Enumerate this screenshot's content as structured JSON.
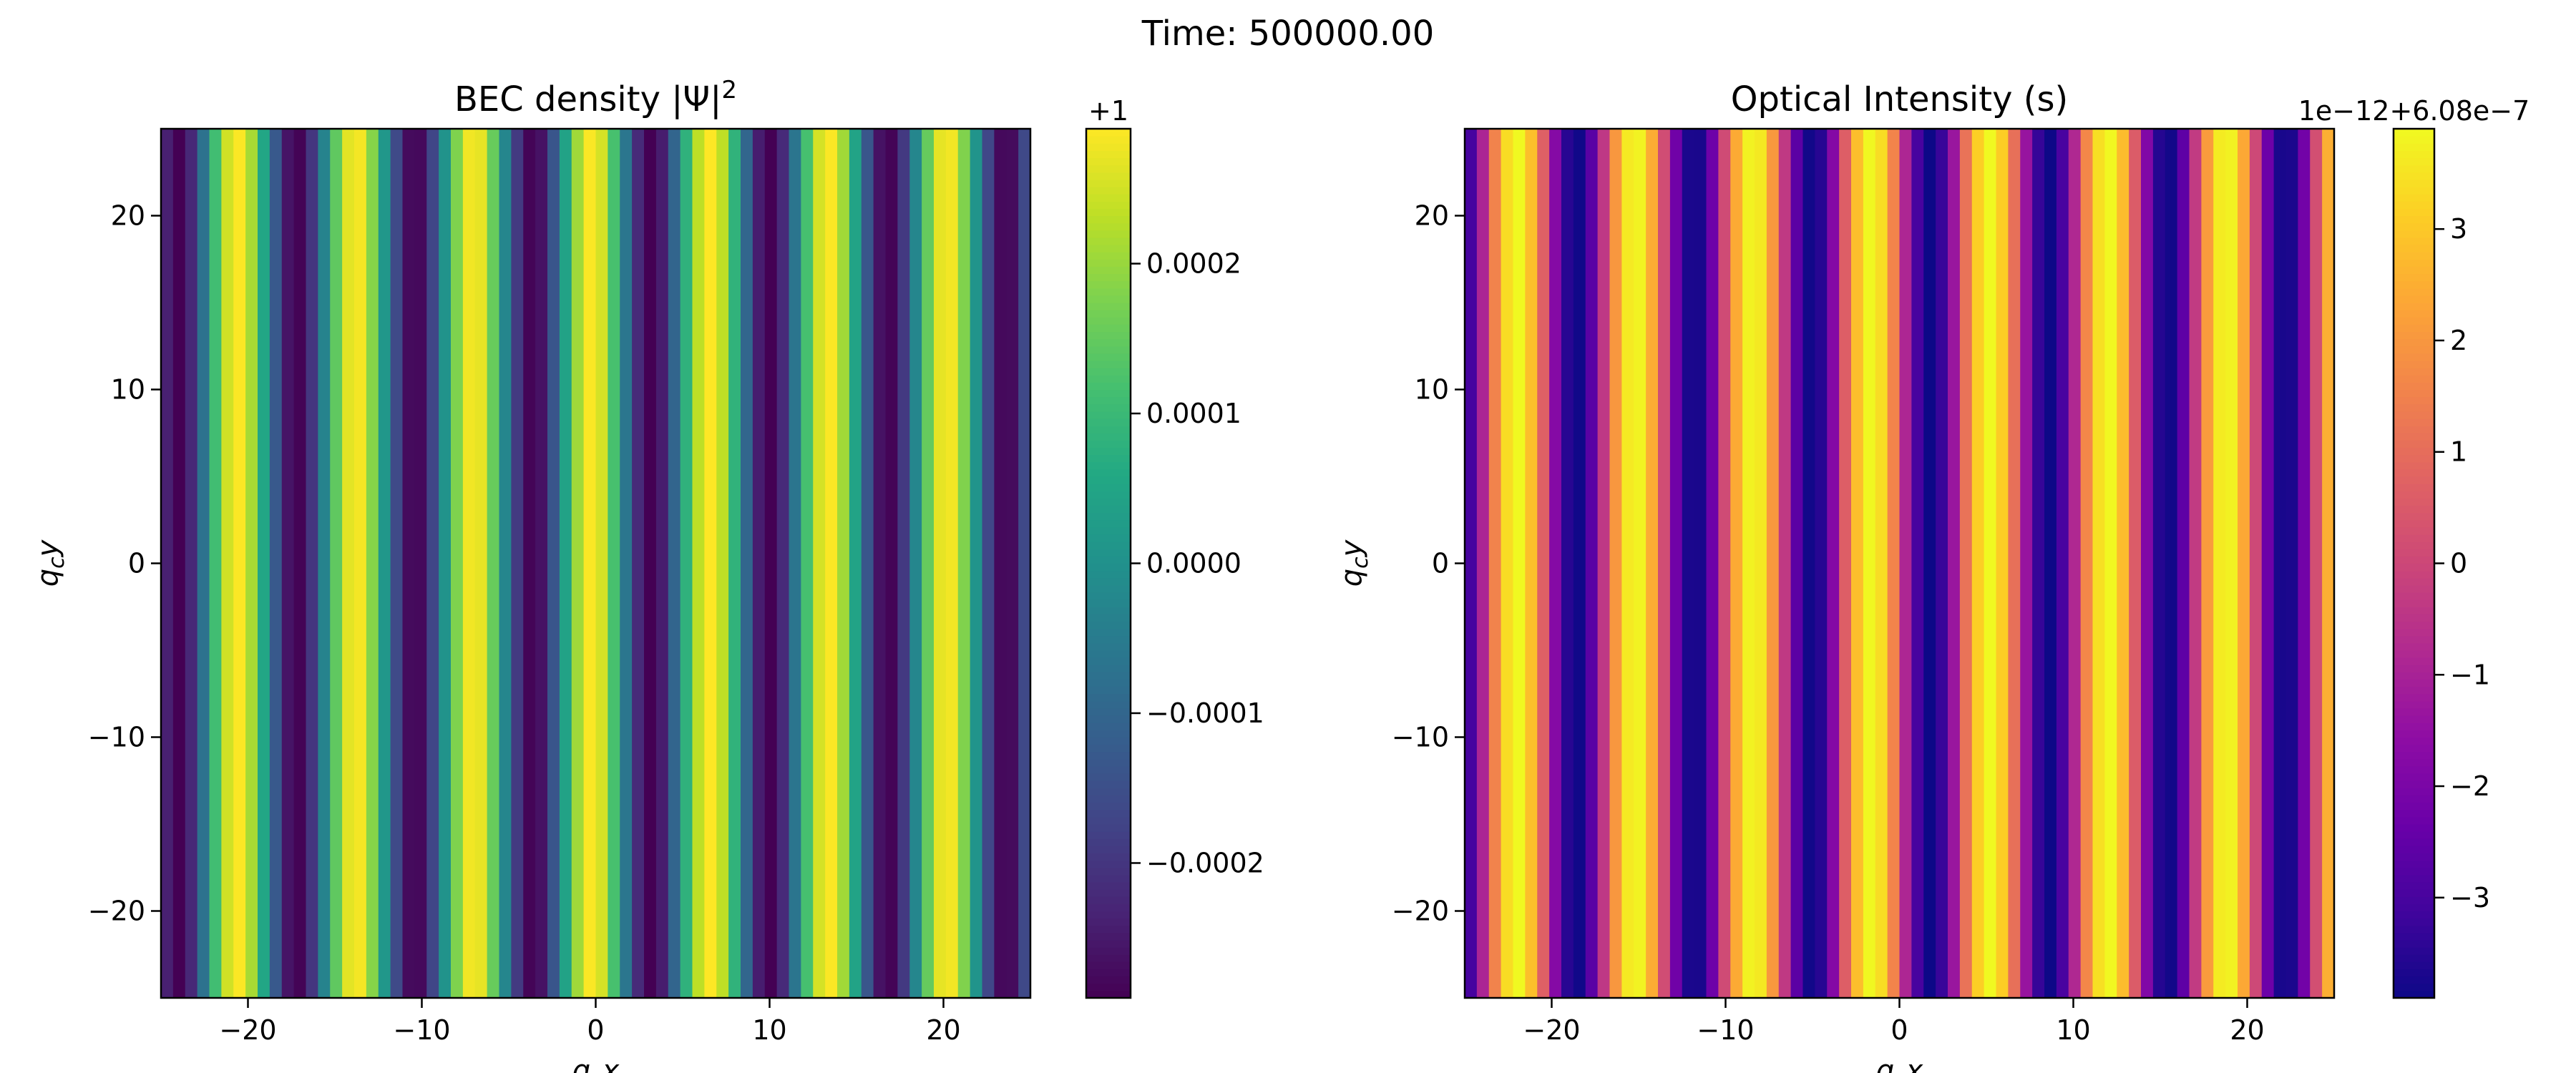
{
  "figure": {
    "suptitle": "Time: 500000.00"
  },
  "colors": {
    "viridis": [
      "#440154",
      "#482475",
      "#414487",
      "#355f8d",
      "#2a788e",
      "#21918c",
      "#22a884",
      "#44bf70",
      "#7ad151",
      "#bddf26",
      "#fde725"
    ],
    "plasma": [
      "#0d0887",
      "#41049d",
      "#6a00a8",
      "#8f0da4",
      "#b12a90",
      "#cc4778",
      "#e16462",
      "#f2844b",
      "#fca636",
      "#fcce25",
      "#f0f921"
    ],
    "axis": "#000000",
    "background": "#ffffff"
  },
  "chart_data": [
    {
      "type": "heatmap",
      "title": "BEC density |Ψ|",
      "title_superscript": "2",
      "xlabel": "q_c x",
      "ylabel": "q_c y",
      "xlim": [
        -25,
        25
      ],
      "ylim": [
        -25,
        25
      ],
      "xticks": [
        -20,
        -10,
        0,
        10,
        20
      ],
      "yticks": [
        -20,
        -10,
        0,
        10,
        20
      ],
      "xtick_labels": [
        "−20",
        "−10",
        "0",
        "10",
        "20"
      ],
      "ytick_labels": [
        "−20",
        "−10",
        "0",
        "10",
        "20"
      ],
      "pattern": "stripes along x, uniform along y",
      "stripe_period": 6.8,
      "first_peak_x": -20.6,
      "amplitude": 0.00029,
      "colormap": "viridis",
      "colorbar": {
        "offset_label": "+1",
        "range": [
          -0.00029,
          0.00029
        ],
        "ticks": [
          -0.0002,
          -0.0001,
          0.0,
          0.0001,
          0.0002
        ],
        "tick_labels": [
          "−0.0002",
          "−0.0001",
          "0.0000",
          "0.0001",
          "0.0002"
        ]
      }
    },
    {
      "type": "heatmap",
      "title": "Optical Intensity (s)",
      "xlabel": "q_c x",
      "ylabel": "q_c y",
      "xlim": [
        -25,
        25
      ],
      "ylim": [
        -25,
        25
      ],
      "xticks": [
        -20,
        -10,
        0,
        10,
        20
      ],
      "yticks": [
        -20,
        -10,
        0,
        10,
        20
      ],
      "xtick_labels": [
        "−20",
        "−10",
        "0",
        "10",
        "20"
      ],
      "ytick_labels": [
        "−20",
        "−10",
        "0",
        "10",
        "20"
      ],
      "pattern": "stripes along x, uniform along y",
      "stripe_period": 6.8,
      "first_peak_x": -22.0,
      "amplitude": 3.9,
      "colormap": "plasma",
      "colorbar": {
        "offset_label": "1e−12+6.08e−7",
        "range": [
          -3.9,
          3.9
        ],
        "ticks": [
          -3,
          -2,
          -1,
          0,
          1,
          2,
          3
        ],
        "tick_labels": [
          "−3",
          "−2",
          "−1",
          "0",
          "1",
          "2",
          "3"
        ]
      }
    }
  ]
}
